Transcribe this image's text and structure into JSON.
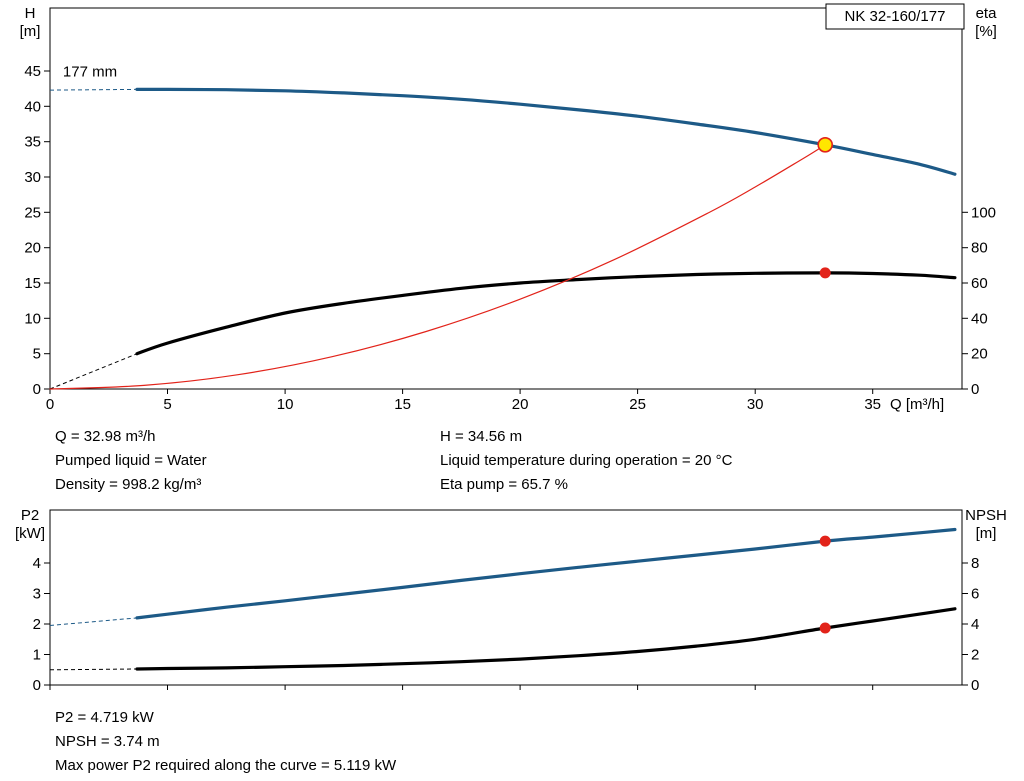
{
  "pump_name": "NK 32-160/177",
  "colors": {
    "curve_blue": "#1d5a87",
    "curve_black": "#000000",
    "system_red": "#e2231a",
    "marker_yellow": "#ffe600",
    "marker_red": "#e2231a",
    "axis": "#000000"
  },
  "info_top": {
    "left": [
      "Q = 32.98 m³/h",
      "Pumped liquid = Water",
      "Density = 998.2 kg/m³"
    ],
    "right": [
      "H = 34.56 m",
      "Liquid temperature during operation = 20 °C",
      "Eta pump = 65.7 %"
    ]
  },
  "info_bottom": [
    "P2 = 4.719 kW",
    "NPSH = 3.74 m",
    "Max power P2 required along the curve = 5.119 kW"
  ],
  "chart_data": [
    {
      "type": "line",
      "name": "qh-eta-chart",
      "title_box": "NK 32-160/177",
      "annotation": {
        "label": "177 mm",
        "q": 0.55,
        "h": 44.2
      },
      "x": {
        "label": "Q [m³/h]",
        "min": 0,
        "max": 38.8,
        "ticks": [
          0,
          5,
          10,
          15,
          20,
          25,
          30,
          35
        ],
        "show_labels": true
      },
      "y_left": {
        "label_lines": [
          "H",
          "[m]"
        ],
        "min": 0,
        "max": 54,
        "ticks": [
          0,
          5,
          10,
          15,
          20,
          25,
          30,
          35,
          40,
          45
        ]
      },
      "y_right": {
        "label_lines": [
          "eta",
          "[%]"
        ],
        "ticks": [
          0,
          20,
          40,
          60,
          80,
          100
        ],
        "ratio": 0.25
      },
      "series": [
        {
          "name": "efficiency-curve",
          "color": "#000000",
          "width": 3.2,
          "axis": "right",
          "lead": [
            [
              0,
              0
            ],
            [
              3.7,
              20
            ]
          ],
          "points": [
            [
              3.7,
              20
            ],
            [
              5,
              26
            ],
            [
              7.5,
              35
            ],
            [
              10,
              43
            ],
            [
              12.5,
              48.5
            ],
            [
              15,
              53
            ],
            [
              17.5,
              57
            ],
            [
              20,
              60
            ],
            [
              22.5,
              62
            ],
            [
              25,
              63.6
            ],
            [
              27.5,
              64.8
            ],
            [
              30,
              65.5
            ],
            [
              32.98,
              65.7
            ],
            [
              35,
              65.4
            ],
            [
              37,
              64.4
            ],
            [
              38.5,
              63.0
            ]
          ]
        },
        {
          "name": "head-curve",
          "color": "#1d5a87",
          "width": 3.2,
          "axis": "left",
          "lead": [
            [
              0,
              42.3
            ],
            [
              3.7,
              42.4
            ]
          ],
          "points": [
            [
              3.7,
              42.4
            ],
            [
              5,
              42.4
            ],
            [
              7.5,
              42.35
            ],
            [
              10,
              42.2
            ],
            [
              12.5,
              41.9
            ],
            [
              15,
              41.5
            ],
            [
              17.5,
              41.0
            ],
            [
              20,
              40.3
            ],
            [
              22.5,
              39.5
            ],
            [
              25,
              38.6
            ],
            [
              27.5,
              37.5
            ],
            [
              30,
              36.3
            ],
            [
              32.98,
              34.56
            ],
            [
              35,
              33.2
            ],
            [
              37,
              31.8
            ],
            [
              38.5,
              30.4
            ]
          ]
        },
        {
          "name": "system-curve",
          "color": "#e2231a",
          "width": 1.2,
          "axis": "left",
          "points": [
            [
              0,
              0
            ],
            [
              4,
              0.51
            ],
            [
              8,
              2.03
            ],
            [
              12,
              4.57
            ],
            [
              16,
              8.13
            ],
            [
              20,
              12.71
            ],
            [
              24,
              18.3
            ],
            [
              28,
              24.91
            ],
            [
              30,
              28.59
            ],
            [
              32,
              32.53
            ],
            [
              32.98,
              34.56
            ]
          ]
        }
      ],
      "markers": [
        {
          "name": "duty-point-marker",
          "q": 32.98,
          "v": 34.56,
          "axis": "left",
          "style": "ring"
        },
        {
          "name": "eta-point-marker",
          "q": 32.98,
          "v": 65.7,
          "axis": "right",
          "style": "dot"
        }
      ]
    },
    {
      "type": "line",
      "name": "p2-npsh-chart",
      "x": {
        "min": 0,
        "max": 38.8,
        "ticks": [
          0,
          5,
          10,
          15,
          20,
          25,
          30,
          35
        ],
        "show_labels": false
      },
      "y_left": {
        "label_lines": [
          "P2",
          "[kW]"
        ],
        "ticks": [
          0,
          1,
          2,
          3,
          4
        ]
      },
      "y_right": {
        "label_lines": [
          "NPSH",
          "[m]"
        ],
        "ticks": [
          0,
          2,
          4,
          6,
          8
        ],
        "ratio": 0.5
      },
      "series": [
        {
          "name": "p2-curve",
          "color": "#1d5a87",
          "width": 3.2,
          "axis": "left",
          "lead": [
            [
              0,
              1.95
            ],
            [
              3.7,
              2.2
            ]
          ],
          "points": [
            [
              3.7,
              2.2
            ],
            [
              5,
              2.32
            ],
            [
              7.5,
              2.55
            ],
            [
              10,
              2.76
            ],
            [
              12.5,
              2.98
            ],
            [
              15,
              3.2
            ],
            [
              17.5,
              3.43
            ],
            [
              20,
              3.65
            ],
            [
              22.5,
              3.86
            ],
            [
              25,
              4.06
            ],
            [
              27.5,
              4.26
            ],
            [
              30,
              4.46
            ],
            [
              32.98,
              4.719
            ],
            [
              35,
              4.85
            ],
            [
              37,
              4.99
            ],
            [
              38.5,
              5.1
            ]
          ]
        },
        {
          "name": "npsh-curve",
          "color": "#000000",
          "width": 3.2,
          "axis": "right",
          "lead": [
            [
              0,
              1.0
            ],
            [
              3.7,
              1.05
            ]
          ],
          "points": [
            [
              3.7,
              1.05
            ],
            [
              5,
              1.08
            ],
            [
              7.5,
              1.12
            ],
            [
              10,
              1.2
            ],
            [
              12.5,
              1.28
            ],
            [
              15,
              1.4
            ],
            [
              17.5,
              1.53
            ],
            [
              20,
              1.7
            ],
            [
              22.5,
              1.92
            ],
            [
              25,
              2.2
            ],
            [
              27.5,
              2.55
            ],
            [
              30,
              3.0
            ],
            [
              32.98,
              3.74
            ],
            [
              35,
              4.2
            ],
            [
              37,
              4.65
            ],
            [
              38.5,
              5.0
            ]
          ]
        }
      ],
      "markers": [
        {
          "name": "p2-point-marker",
          "q": 32.98,
          "v": 4.719,
          "axis": "left",
          "style": "dot"
        },
        {
          "name": "npsh-point-marker",
          "q": 32.98,
          "v": 3.74,
          "axis": "right",
          "style": "dot"
        }
      ]
    }
  ]
}
